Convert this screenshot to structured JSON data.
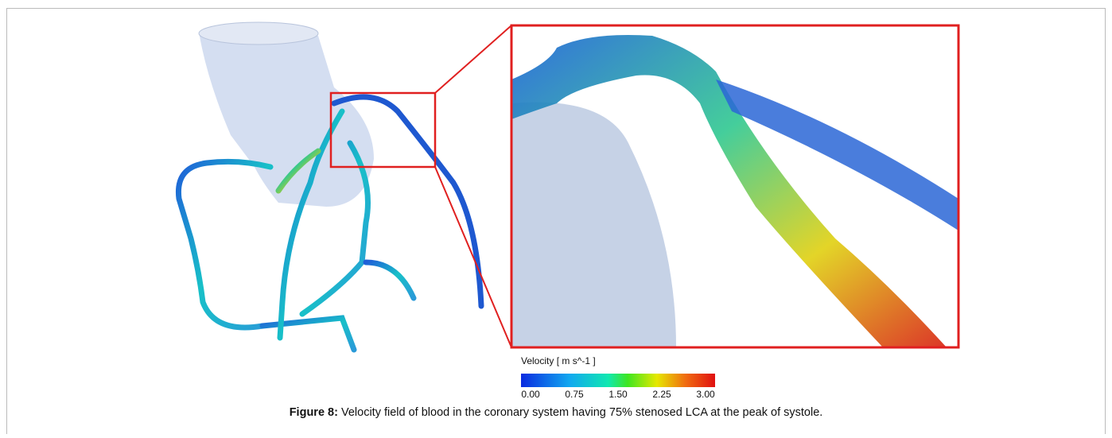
{
  "figure": {
    "colorbar": {
      "title": "Velocity [ m s^-1 ]",
      "lim": [
        0,
        3
      ],
      "ticks": [
        {
          "value": 0,
          "label": "0.00"
        },
        {
          "value": 0.75,
          "label": "0.75"
        },
        {
          "value": 1.5,
          "label": "1.50"
        },
        {
          "value": 2.25,
          "label": "2.25"
        },
        {
          "value": 3,
          "label": "3.00"
        }
      ]
    },
    "caption": {
      "label": "Figure 8:",
      "text": "Velocity field of blood in the coronary system having 75% stenosed LCA at the peak of systole."
    }
  }
}
